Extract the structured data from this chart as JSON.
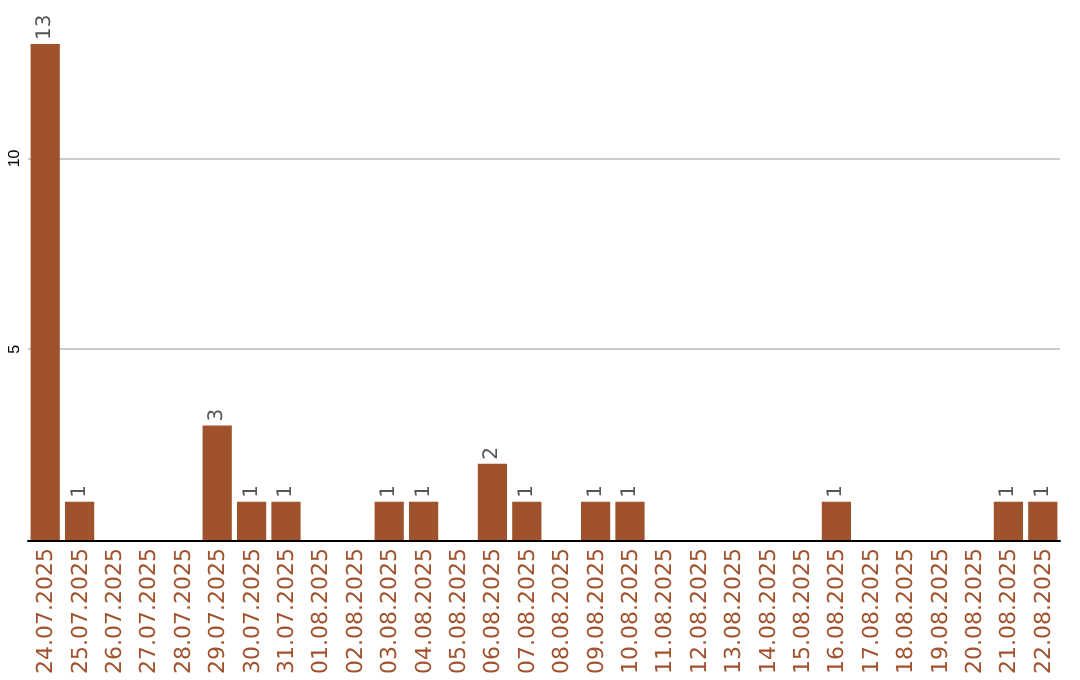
{
  "chart_data": {
    "type": "bar",
    "categories": [
      "24.07.2025",
      "25.07.2025",
      "26.07.2025",
      "27.07.2025",
      "28.07.2025",
      "29.07.2025",
      "30.07.2025",
      "31.07.2025",
      "01.08.2025",
      "02.08.2025",
      "03.08.2025",
      "04.08.2025",
      "05.08.2025",
      "06.08.2025",
      "07.08.2025",
      "08.08.2025",
      "09.08.2025",
      "10.08.2025",
      "11.08.2025",
      "12.08.2025",
      "13.08.2025",
      "14.08.2025",
      "15.08.2025",
      "16.08.2025",
      "17.08.2025",
      "18.08.2025",
      "19.08.2025",
      "20.08.2025",
      "21.08.2025",
      "22.08.2025"
    ],
    "values": [
      13,
      1,
      0,
      0,
      0,
      3,
      1,
      1,
      0,
      0,
      1,
      1,
      0,
      2,
      1,
      0,
      1,
      1,
      0,
      0,
      0,
      0,
      0,
      1,
      0,
      0,
      0,
      0,
      1,
      1
    ],
    "value_labels": [
      "13",
      "1",
      null,
      null,
      null,
      "3",
      "1",
      "1",
      null,
      null,
      "1",
      "1",
      null,
      "2",
      "1",
      null,
      "1",
      "1",
      null,
      null,
      null,
      null,
      null,
      "1",
      null,
      null,
      null,
      null,
      "1",
      "1"
    ],
    "color": "#a0522d",
    "ylim": [
      0,
      13
    ],
    "yticks": [
      {
        "value": 0,
        "label": null
      },
      5,
      10
    ],
    "grid": "y"
  }
}
